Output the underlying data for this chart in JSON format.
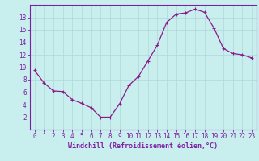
{
  "x": [
    0,
    1,
    2,
    3,
    4,
    5,
    6,
    7,
    8,
    9,
    10,
    11,
    12,
    13,
    14,
    15,
    16,
    17,
    18,
    19,
    20,
    21,
    22,
    23
  ],
  "y": [
    9.5,
    7.5,
    6.2,
    6.1,
    4.8,
    4.2,
    3.5,
    2.0,
    2.0,
    4.1,
    7.1,
    8.5,
    11.0,
    13.5,
    17.2,
    18.5,
    18.7,
    19.3,
    18.8,
    16.3,
    13.0,
    12.2,
    12.0,
    11.5
  ],
  "line_color": "#8b1a8b",
  "marker": "+",
  "marker_size": 4,
  "bg_color": "#c8eeee",
  "grid_color": "#aadddd",
  "axis_color": "#7b1fa2",
  "xlabel": "Windchill (Refroidissement éolien,°C)",
  "xlabel_fontsize": 6.0,
  "tick_fontsize": 5.5,
  "ylim": [
    0,
    20
  ],
  "yticks": [
    2,
    4,
    6,
    8,
    10,
    12,
    14,
    16,
    18
  ],
  "xlim": [
    -0.5,
    23.5
  ],
  "xticks": [
    0,
    1,
    2,
    3,
    4,
    5,
    6,
    7,
    8,
    9,
    10,
    11,
    12,
    13,
    14,
    15,
    16,
    17,
    18,
    19,
    20,
    21,
    22,
    23
  ]
}
